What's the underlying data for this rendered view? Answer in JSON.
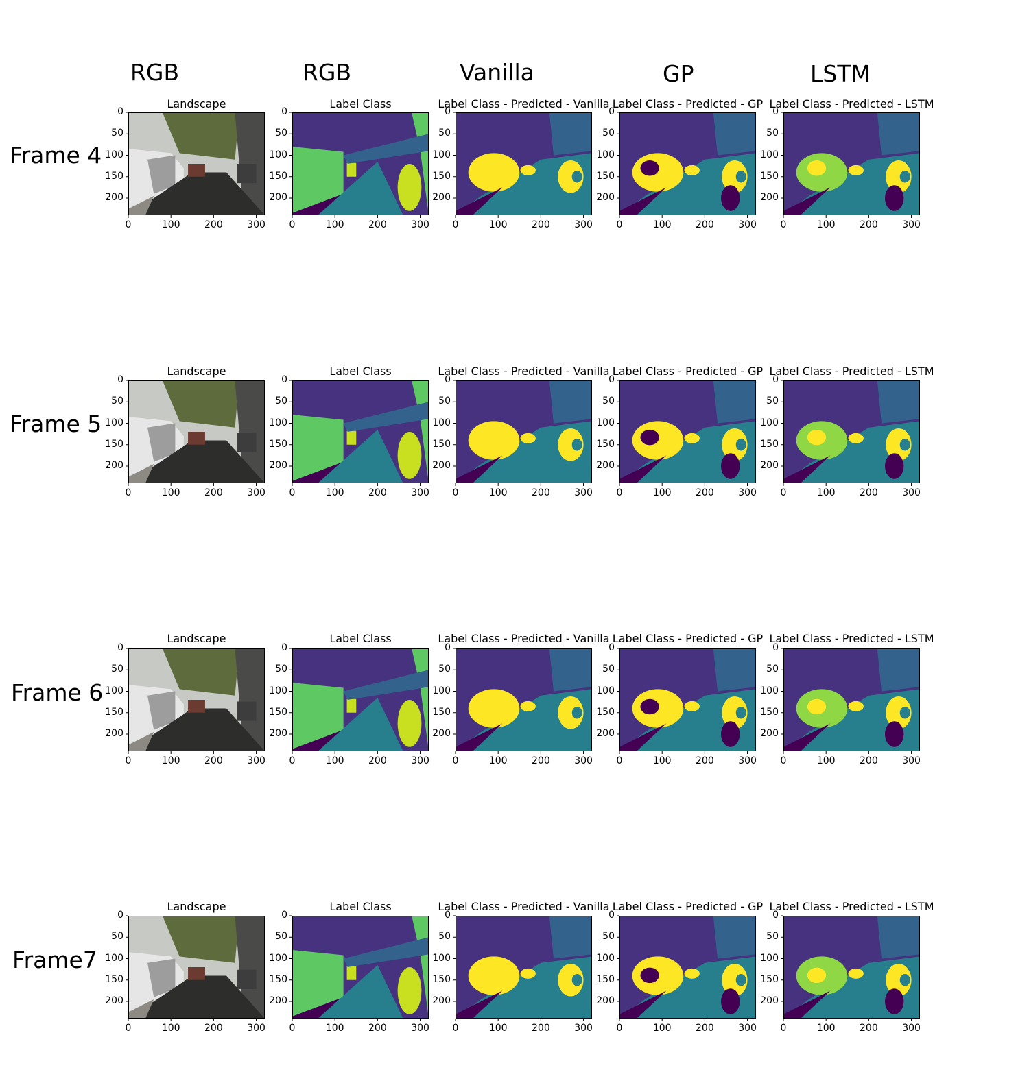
{
  "column_headers": [
    "RGB",
    "RGB",
    "Vanilla",
    "GP",
    "LSTM"
  ],
  "row_labels": [
    "Frame 4",
    "Frame 5",
    "Frame 6",
    "Frame7"
  ],
  "panel_titles": [
    "Landscape",
    "Label Class",
    "Label Class - Predicted - Vanilla",
    "Label Class - Predicted - GP",
    "Label Class - Predicted - LSTM"
  ],
  "axes": {
    "x_ticks": [
      "0",
      "100",
      "200",
      "300"
    ],
    "y_ticks": [
      "0",
      "50",
      "100",
      "150",
      "200"
    ]
  },
  "colors": {
    "purple": "#46327e",
    "dark_purple": "#440154",
    "teal": "#277f8e",
    "teal_mid": "#33638d",
    "green": "#5ec962",
    "light_green": "#8fd744",
    "yellow": "#fde725",
    "lime": "#c8e020"
  }
}
